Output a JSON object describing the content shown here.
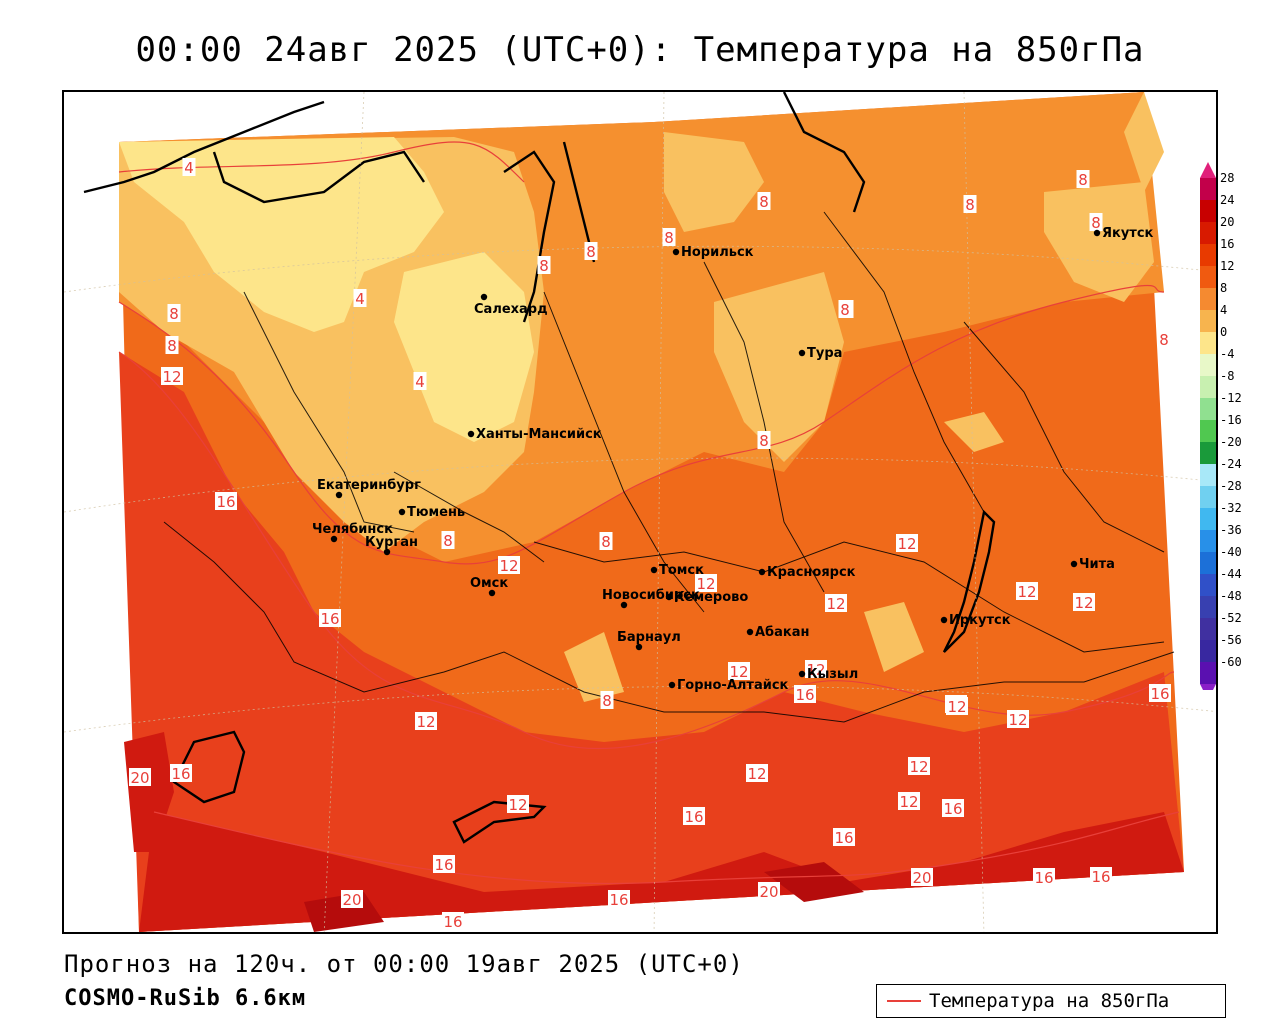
{
  "title": "00:00 24авг 2025 (UTC+0): Температура на 850гПа",
  "forecast_info": "Прогноз на 120ч. от 00:00 19авг 2025 (UTC+0)",
  "model_name": "COSMO-RuSib 6.6км",
  "legend": {
    "line_label": "Температура на 850гПа",
    "line_color": "#e8403a"
  },
  "colorbar": {
    "levels": [
      "28",
      "24",
      "20",
      "16",
      "12",
      "8",
      "4",
      "0",
      "-4",
      "-8",
      "-12",
      "-16",
      "-20",
      "-24",
      "-28",
      "-32",
      "-36",
      "-40",
      "-44",
      "-48",
      "-52",
      "-56",
      "-60"
    ],
    "colors": [
      "#c2004a",
      "#c80000",
      "#d81a00",
      "#e83a00",
      "#f05a10",
      "#f58a30",
      "#f7b44e",
      "#fde58a",
      "#e8f8c8",
      "#c8f0b0",
      "#90e090",
      "#50c850",
      "#1a9a3a",
      "#a8e8f8",
      "#70d0f0",
      "#40b8f0",
      "#2890e8",
      "#1c70d8",
      "#3050c8",
      "#3840b0",
      "#4030a0",
      "#3828a0",
      "#5a10b0"
    ],
    "top_arrow_color": "#e0207a",
    "bottom_arrow_color": "#8a20c8"
  },
  "cities": [
    {
      "name": "Салехард",
      "id": "salekhard"
    },
    {
      "name": "Ханты-Мансийск",
      "id": "khanty-mansiysk"
    },
    {
      "name": "Екатеринбург",
      "id": "yekaterinburg"
    },
    {
      "name": "Тюмень",
      "id": "tyumen"
    },
    {
      "name": "Челябинск",
      "id": "chelyabinsk"
    },
    {
      "name": "Курган",
      "id": "kurgan"
    },
    {
      "name": "Омск",
      "id": "omsk"
    },
    {
      "name": "Новосибирск",
      "id": "novosibirsk"
    },
    {
      "name": "Томск",
      "id": "tomsk"
    },
    {
      "name": "Кемерово",
      "id": "kemerovo"
    },
    {
      "name": "Барнаул",
      "id": "barnaul"
    },
    {
      "name": "Горно-Алтайск",
      "id": "gorno-altaysk"
    },
    {
      "name": "Абакан",
      "id": "abakan"
    },
    {
      "name": "Кызыл",
      "id": "kyzyl"
    },
    {
      "name": "Красноярск",
      "id": "krasnoyarsk"
    },
    {
      "name": "Иркутск",
      "id": "irkutsk"
    },
    {
      "name": "Чита",
      "id": "chita"
    },
    {
      "name": "Норильск",
      "id": "norilsk"
    },
    {
      "name": "Тура",
      "id": "tura"
    },
    {
      "name": "Якутск",
      "id": "yakutsk"
    }
  ],
  "isotherm_labels": [
    "4",
    "4",
    "4",
    "8",
    "8",
    "8",
    "8",
    "8",
    "8",
    "8",
    "8",
    "8",
    "8",
    "8",
    "8",
    "8",
    "8",
    "8",
    "8",
    "12",
    "12",
    "12",
    "12",
    "12",
    "12",
    "12",
    "12",
    "12",
    "12",
    "12",
    "12",
    "12",
    "12",
    "12",
    "12",
    "12",
    "16",
    "16",
    "16",
    "16",
    "16",
    "16",
    "16",
    "16",
    "16",
    "16",
    "16",
    "16",
    "16",
    "20",
    "20",
    "20",
    "20"
  ],
  "field_colors": {
    "below_4": "#fde58a",
    "4_8": "#f9c160",
    "8_12": "#f5902f",
    "12_16": "#f06a1a",
    "16_20": "#e8401c",
    "above_20": "#d01a10",
    "above_24": "#b50c0c"
  }
}
